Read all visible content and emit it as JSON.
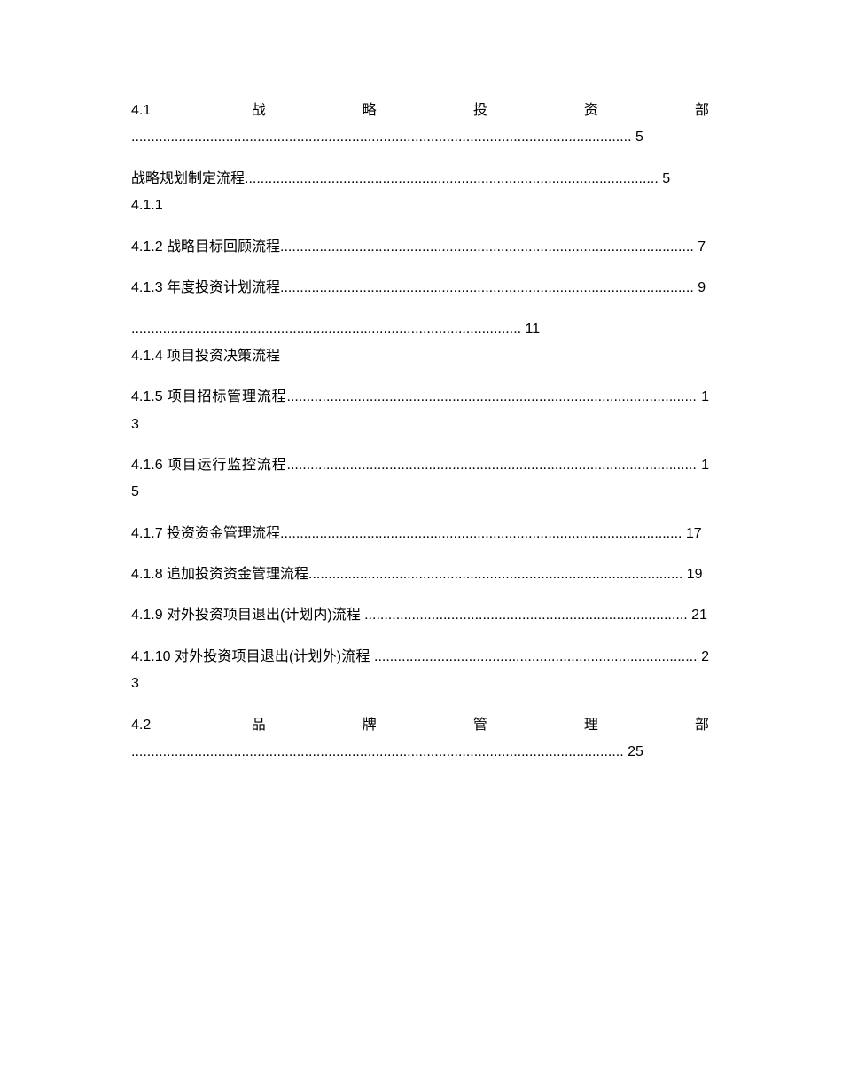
{
  "toc": {
    "entries": [
      {
        "text": "4.1 战略投资部 ............................................................................................................................... 5"
      },
      {
        "text": "战略规划制定流程......................................................................................................... 5\n4.1.1"
      },
      {
        "text": "4.1.2 战略目标回顾流程......................................................................................................... 7"
      },
      {
        "text": "4.1.3 年度投资计划流程......................................................................................................... 9"
      },
      {
        "text": "................................................................................................... 11\n4.1.4 项目投资决策流程"
      },
      {
        "text": "4.1.5 项目招标管理流程........................................................................................................ 13"
      },
      {
        "text": "4.1.6 项目运行监控流程........................................................................................................ 15"
      },
      {
        "text": "4.1.7 投资资金管理流程...................................................................................................... 17"
      },
      {
        "text": "4.1.8 追加投资资金管理流程............................................................................................... 19"
      },
      {
        "text": "4.1.9 对外投资项目退出(计划内)流程 .................................................................................. 21"
      },
      {
        "text": "4.1.10 对外投资项目退出(计划外)流程 .................................................................................. 23"
      },
      {
        "text": "4.2 品牌管理部 ............................................................................................................................. 25"
      }
    ],
    "text_color": "#000000",
    "background_color": "#ffffff",
    "font_size": 16
  }
}
